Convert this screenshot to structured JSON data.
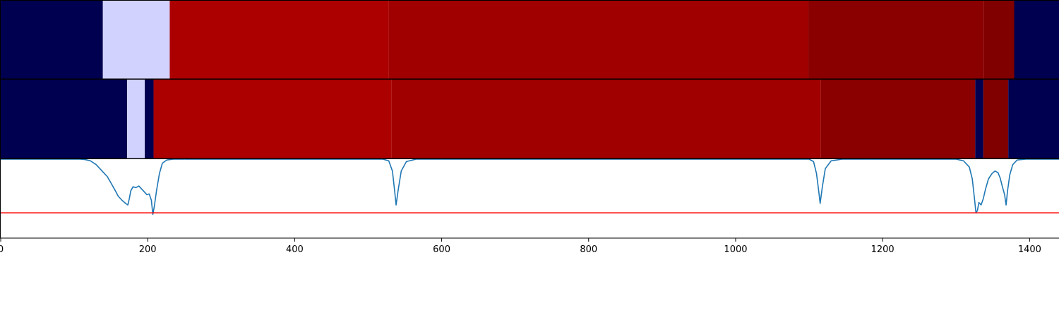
{
  "chart_data": {
    "type": "segmentation-timeline",
    "xlim": [
      0,
      1440
    ],
    "x_ticks": [
      0,
      200,
      400,
      600,
      800,
      1000,
      1200,
      1400
    ],
    "x_tick_labels": [
      "0",
      "200",
      "400",
      "600",
      "800",
      "1000",
      "1200",
      "1400"
    ],
    "grid": false,
    "panels": [
      {
        "kind": "segments",
        "segments": [
          {
            "start": 0,
            "end": 139,
            "color": "#000050"
          },
          {
            "start": 139,
            "end": 230,
            "color": "#d2d2ff"
          },
          {
            "start": 230,
            "end": 528,
            "color": "#ac0000"
          },
          {
            "start": 528,
            "end": 1099,
            "color": "#a00000"
          },
          {
            "start": 1099,
            "end": 1338,
            "color": "#8a0000"
          },
          {
            "start": 1338,
            "end": 1379,
            "color": "#800000"
          },
          {
            "start": 1379,
            "end": 1440,
            "color": "#000050"
          }
        ]
      },
      {
        "kind": "segments",
        "segments": [
          {
            "start": 0,
            "end": 172,
            "color": "#000050"
          },
          {
            "start": 172,
            "end": 196,
            "color": "#d2d2ff"
          },
          {
            "start": 196,
            "end": 208,
            "color": "#000050"
          },
          {
            "start": 208,
            "end": 532,
            "color": "#ac0000"
          },
          {
            "start": 532,
            "end": 1116,
            "color": "#a00000"
          },
          {
            "start": 1116,
            "end": 1326,
            "color": "#8a0000"
          },
          {
            "start": 1326,
            "end": 1337,
            "color": "#000050"
          },
          {
            "start": 1337,
            "end": 1371,
            "color": "#800000"
          },
          {
            "start": 1371,
            "end": 1440,
            "color": "#000050"
          }
        ]
      },
      {
        "kind": "line",
        "ylim": [
          0,
          1
        ],
        "line_color": "#1f77b4",
        "threshold": 0.32,
        "threshold_color": "#ff0000",
        "series": [
          {
            "x": [
              0,
              108,
              115,
              122,
              130,
              138,
              145,
              150,
              156,
              160,
              165,
              170,
              173,
              175,
              177,
              180,
              184,
              188,
              192,
              196,
              199,
              202,
              205,
              207,
              209,
              212,
              216,
              220,
              226,
              235,
              250
            ],
            "y": [
              1,
              1,
              0.995,
              0.98,
              0.93,
              0.85,
              0.78,
              0.7,
              0.6,
              0.53,
              0.48,
              0.44,
              0.42,
              0.5,
              0.6,
              0.65,
              0.64,
              0.66,
              0.62,
              0.58,
              0.55,
              0.56,
              0.48,
              0.3,
              0.4,
              0.6,
              0.82,
              0.95,
              0.99,
              1,
              1
            ]
          },
          {
            "x": [
              250,
              520,
              528,
              533,
              536,
              538,
              541,
              545,
              552,
              565,
              600
            ],
            "y": [
              1,
              1,
              0.98,
              0.85,
              0.6,
              0.42,
              0.62,
              0.85,
              0.97,
              1,
              1
            ]
          },
          {
            "x": [
              600,
              1100,
              1106,
              1110,
              1113,
              1115,
              1118,
              1122,
              1130,
              1145,
              1180
            ],
            "y": [
              1,
              1,
              0.97,
              0.82,
              0.6,
              0.44,
              0.65,
              0.88,
              0.98,
              1,
              1
            ]
          },
          {
            "x": [
              1180,
              1300,
              1310,
              1318,
              1322,
              1325,
              1327,
              1329,
              1331,
              1334,
              1337,
              1340,
              1344,
              1349,
              1353,
              1357,
              1360,
              1363,
              1366,
              1368,
              1370,
              1373,
              1377,
              1383,
              1395,
              1440
            ],
            "y": [
              1,
              1,
              0.98,
              0.9,
              0.75,
              0.5,
              0.32,
              0.35,
              0.45,
              0.42,
              0.5,
              0.62,
              0.75,
              0.82,
              0.85,
              0.83,
              0.76,
              0.65,
              0.55,
              0.42,
              0.6,
              0.8,
              0.93,
              0.99,
              1,
              1
            ]
          }
        ]
      }
    ]
  }
}
